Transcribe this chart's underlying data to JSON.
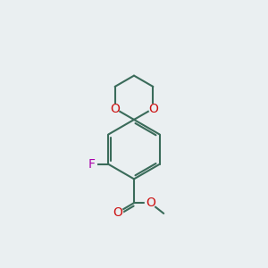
{
  "bg_color": "#eaeff1",
  "bond_color": "#3a6b5a",
  "o_color": "#cc1111",
  "f_color": "#aa00aa",
  "bond_lw": 1.5,
  "font_size": 10,
  "xlim": [
    0,
    10
  ],
  "ylim": [
    0,
    14
  ],
  "figsize": [
    3.0,
    3.0
  ],
  "dpi": 100
}
